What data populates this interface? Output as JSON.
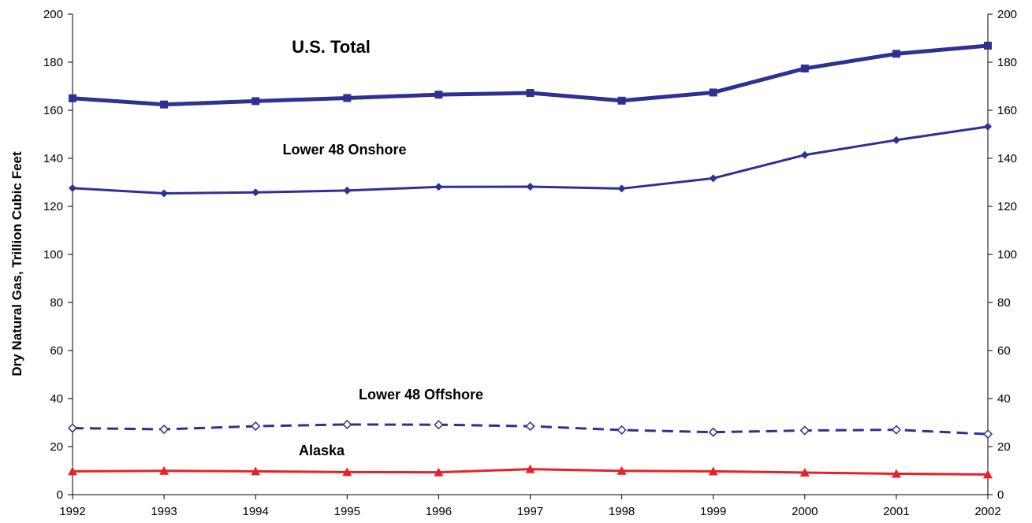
{
  "chart_data": {
    "type": "line",
    "ylabel": "Dry Natural Gas, Trillion Cubic Feet",
    "xlabel": "",
    "x": [
      "1992",
      "1993",
      "1994",
      "1995",
      "1996",
      "1997",
      "1998",
      "1999",
      "2000",
      "2001",
      "2002"
    ],
    "ylim": [
      0,
      200
    ],
    "yticks": [
      "0",
      "20",
      "40",
      "60",
      "80",
      "100",
      "120",
      "140",
      "160",
      "180",
      "200"
    ],
    "grid": false,
    "right_axis": true,
    "series": [
      {
        "name": "U.S. Total",
        "color": "#2E3192",
        "style": "solid-thick",
        "marker": "square",
        "values": [
          165.0,
          162.4,
          163.8,
          165.1,
          166.5,
          167.2,
          164.0,
          167.4,
          177.4,
          183.5,
          186.9
        ]
      },
      {
        "name": "Lower 48 Onshore",
        "color": "#2E3192",
        "style": "solid",
        "marker": "diamond",
        "values": [
          127.6,
          125.4,
          125.8,
          126.6,
          128.1,
          128.2,
          127.4,
          131.7,
          141.4,
          147.6,
          153.2
        ]
      },
      {
        "name": "Lower 48 Offshore",
        "color": "#2E3192",
        "style": "dashed",
        "marker": "diamond-open",
        "values": [
          27.7,
          27.2,
          28.5,
          29.2,
          29.1,
          28.5,
          26.9,
          26.0,
          26.7,
          27.0,
          25.2
        ]
      },
      {
        "name": "Alaska",
        "color": "#E8202A",
        "style": "solid",
        "marker": "triangle",
        "values": [
          9.7,
          9.9,
          9.7,
          9.4,
          9.3,
          10.6,
          9.9,
          9.7,
          9.2,
          8.7,
          8.4
        ]
      }
    ]
  }
}
